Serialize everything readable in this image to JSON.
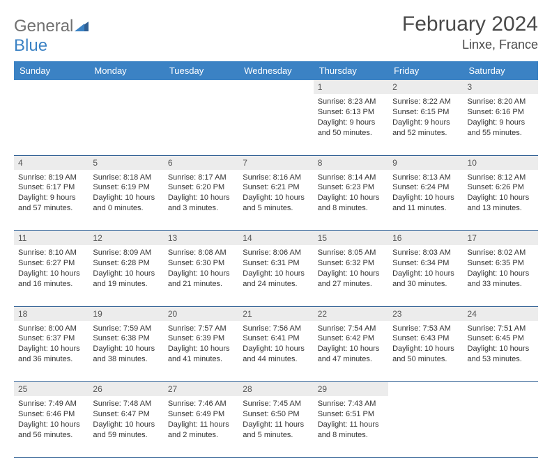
{
  "brand": {
    "part1": "General",
    "part2": "Blue"
  },
  "title": "February 2024",
  "location": "Linxe, France",
  "colors": {
    "header_bg": "#3b82c4",
    "header_text": "#ffffff",
    "daynum_bg": "#ececec",
    "border": "#2f5f93",
    "text": "#333333"
  },
  "day_headers": [
    "Sunday",
    "Monday",
    "Tuesday",
    "Wednesday",
    "Thursday",
    "Friday",
    "Saturday"
  ],
  "weeks": [
    [
      null,
      null,
      null,
      null,
      {
        "n": "1",
        "sunrise": "8:23 AM",
        "sunset": "6:13 PM",
        "daylight": "9 hours and 50 minutes."
      },
      {
        "n": "2",
        "sunrise": "8:22 AM",
        "sunset": "6:15 PM",
        "daylight": "9 hours and 52 minutes."
      },
      {
        "n": "3",
        "sunrise": "8:20 AM",
        "sunset": "6:16 PM",
        "daylight": "9 hours and 55 minutes."
      }
    ],
    [
      {
        "n": "4",
        "sunrise": "8:19 AM",
        "sunset": "6:17 PM",
        "daylight": "9 hours and 57 minutes."
      },
      {
        "n": "5",
        "sunrise": "8:18 AM",
        "sunset": "6:19 PM",
        "daylight": "10 hours and 0 minutes."
      },
      {
        "n": "6",
        "sunrise": "8:17 AM",
        "sunset": "6:20 PM",
        "daylight": "10 hours and 3 minutes."
      },
      {
        "n": "7",
        "sunrise": "8:16 AM",
        "sunset": "6:21 PM",
        "daylight": "10 hours and 5 minutes."
      },
      {
        "n": "8",
        "sunrise": "8:14 AM",
        "sunset": "6:23 PM",
        "daylight": "10 hours and 8 minutes."
      },
      {
        "n": "9",
        "sunrise": "8:13 AM",
        "sunset": "6:24 PM",
        "daylight": "10 hours and 11 minutes."
      },
      {
        "n": "10",
        "sunrise": "8:12 AM",
        "sunset": "6:26 PM",
        "daylight": "10 hours and 13 minutes."
      }
    ],
    [
      {
        "n": "11",
        "sunrise": "8:10 AM",
        "sunset": "6:27 PM",
        "daylight": "10 hours and 16 minutes."
      },
      {
        "n": "12",
        "sunrise": "8:09 AM",
        "sunset": "6:28 PM",
        "daylight": "10 hours and 19 minutes."
      },
      {
        "n": "13",
        "sunrise": "8:08 AM",
        "sunset": "6:30 PM",
        "daylight": "10 hours and 21 minutes."
      },
      {
        "n": "14",
        "sunrise": "8:06 AM",
        "sunset": "6:31 PM",
        "daylight": "10 hours and 24 minutes."
      },
      {
        "n": "15",
        "sunrise": "8:05 AM",
        "sunset": "6:32 PM",
        "daylight": "10 hours and 27 minutes."
      },
      {
        "n": "16",
        "sunrise": "8:03 AM",
        "sunset": "6:34 PM",
        "daylight": "10 hours and 30 minutes."
      },
      {
        "n": "17",
        "sunrise": "8:02 AM",
        "sunset": "6:35 PM",
        "daylight": "10 hours and 33 minutes."
      }
    ],
    [
      {
        "n": "18",
        "sunrise": "8:00 AM",
        "sunset": "6:37 PM",
        "daylight": "10 hours and 36 minutes."
      },
      {
        "n": "19",
        "sunrise": "7:59 AM",
        "sunset": "6:38 PM",
        "daylight": "10 hours and 38 minutes."
      },
      {
        "n": "20",
        "sunrise": "7:57 AM",
        "sunset": "6:39 PM",
        "daylight": "10 hours and 41 minutes."
      },
      {
        "n": "21",
        "sunrise": "7:56 AM",
        "sunset": "6:41 PM",
        "daylight": "10 hours and 44 minutes."
      },
      {
        "n": "22",
        "sunrise": "7:54 AM",
        "sunset": "6:42 PM",
        "daylight": "10 hours and 47 minutes."
      },
      {
        "n": "23",
        "sunrise": "7:53 AM",
        "sunset": "6:43 PM",
        "daylight": "10 hours and 50 minutes."
      },
      {
        "n": "24",
        "sunrise": "7:51 AM",
        "sunset": "6:45 PM",
        "daylight": "10 hours and 53 minutes."
      }
    ],
    [
      {
        "n": "25",
        "sunrise": "7:49 AM",
        "sunset": "6:46 PM",
        "daylight": "10 hours and 56 minutes."
      },
      {
        "n": "26",
        "sunrise": "7:48 AM",
        "sunset": "6:47 PM",
        "daylight": "10 hours and 59 minutes."
      },
      {
        "n": "27",
        "sunrise": "7:46 AM",
        "sunset": "6:49 PM",
        "daylight": "11 hours and 2 minutes."
      },
      {
        "n": "28",
        "sunrise": "7:45 AM",
        "sunset": "6:50 PM",
        "daylight": "11 hours and 5 minutes."
      },
      {
        "n": "29",
        "sunrise": "7:43 AM",
        "sunset": "6:51 PM",
        "daylight": "11 hours and 8 minutes."
      },
      null,
      null
    ]
  ],
  "labels": {
    "sunrise": "Sunrise:",
    "sunset": "Sunset:",
    "daylight": "Daylight:"
  }
}
